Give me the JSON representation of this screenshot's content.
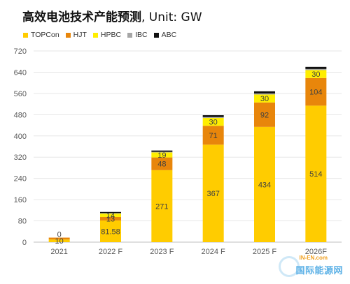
{
  "chart_data": {
    "type": "bar",
    "stacked": true,
    "title_cn": "高效电池技术产能预测",
    "title_unit": ", Unit: GW",
    "categories": [
      "2021",
      "2022 F",
      "2023 F",
      "2024 F",
      "2025 F",
      "2026F"
    ],
    "series": [
      {
        "name": "TOPCon",
        "color": "#FFCC00",
        "values": [
          10,
          81.58,
          271,
          367,
          434,
          514
        ],
        "labels": [
          "10",
          "81.58",
          "271",
          "367",
          "434",
          "514"
        ]
      },
      {
        "name": "HJT",
        "color": "#E8860B",
        "values": [
          7,
          13,
          48,
          71,
          92,
          104
        ],
        "labels": [
          "",
          "13",
          "48",
          "71",
          "92",
          "104"
        ]
      },
      {
        "name": "HPBC",
        "color": "#FFEE00",
        "values": [
          0,
          14,
          19,
          30,
          30,
          30
        ],
        "labels": [
          "0",
          "14",
          "19",
          "30",
          "30",
          "30"
        ]
      },
      {
        "name": "IBC",
        "color": "#A6A6A6",
        "values": [
          0,
          1,
          2,
          3,
          4,
          4
        ],
        "labels": [
          "",
          "",
          "",
          "",
          "",
          ""
        ]
      },
      {
        "name": "ABC",
        "color": "#111111",
        "values": [
          0,
          4,
          5,
          7,
          8,
          8
        ],
        "labels": [
          "",
          "",
          "",
          "",
          "",
          ""
        ]
      }
    ],
    "yticks": [
      0,
      80,
      160,
      240,
      320,
      400,
      480,
      560,
      640,
      720
    ],
    "ylim": [
      0,
      720
    ],
    "grid": true,
    "legend_position": "top-left"
  },
  "watermark": {
    "top": "IN-EN.com",
    "bottom": "国际能源网"
  }
}
